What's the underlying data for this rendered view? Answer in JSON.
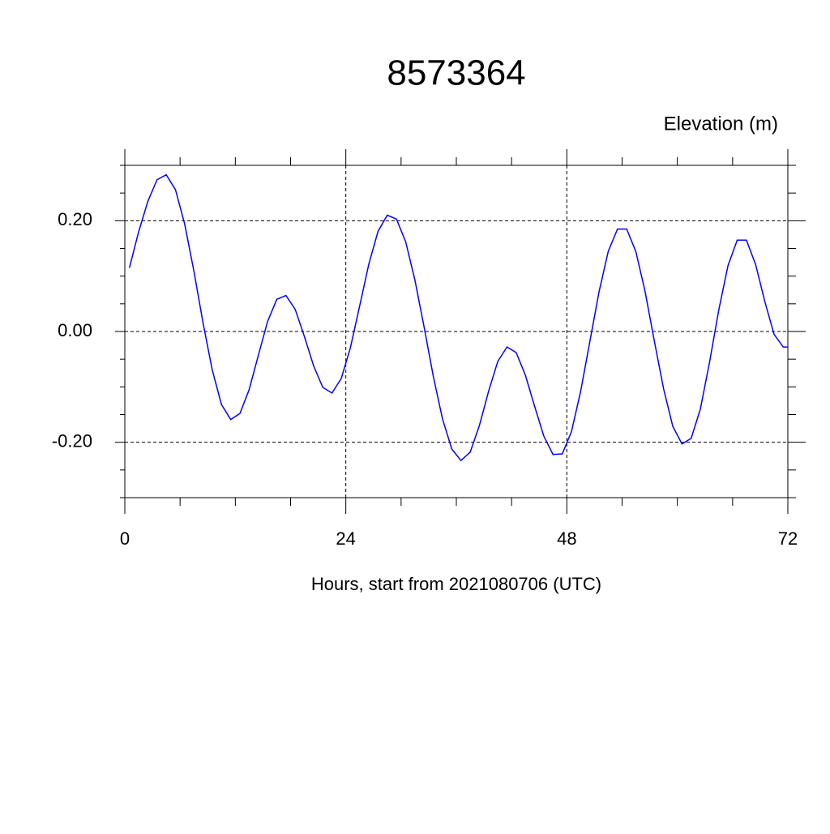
{
  "chart_data": {
    "type": "line",
    "title": "8573364",
    "y_axis_label": "Elevation (m)",
    "x_axis_label": "Hours, start from 2021080706 (UTC)",
    "x": [
      0.5,
      1.5,
      2.5,
      3.5,
      4.5,
      5.5,
      6.5,
      7.5,
      8.5,
      9.5,
      10.5,
      11.5,
      12.5,
      13.5,
      14.5,
      15.5,
      16.5,
      17.5,
      18.5,
      19.5,
      20.5,
      21.5,
      22.5,
      23.5,
      24.5,
      25.5,
      26.5,
      27.5,
      28.5,
      29.5,
      30.5,
      31.5,
      32.5,
      33.5,
      34.5,
      35.5,
      36.5,
      37.5,
      38.5,
      39.5,
      40.5,
      41.5,
      42.5,
      43.5,
      44.5,
      45.5,
      46.5,
      47.5,
      48.5,
      49.5,
      50.5,
      51.5,
      52.5,
      53.5,
      54.5,
      55.5,
      56.5,
      57.5,
      58.5,
      59.5,
      60.5,
      61.5,
      62.5,
      63.5,
      64.5,
      65.5,
      66.5,
      67.5,
      68.5,
      69.5,
      70.5,
      71.5,
      72
    ],
    "series": [
      {
        "color": "#0000ff",
        "values": [
          0.115,
          0.18,
          0.235,
          0.274,
          0.283,
          0.256,
          0.194,
          0.109,
          0.015,
          -0.07,
          -0.132,
          -0.159,
          -0.148,
          -0.105,
          -0.043,
          0.018,
          0.058,
          0.065,
          0.04,
          -0.009,
          -0.062,
          -0.101,
          -0.111,
          -0.085,
          -0.029,
          0.046,
          0.122,
          0.181,
          0.21,
          0.203,
          0.162,
          0.093,
          0.008,
          -0.081,
          -0.158,
          -0.212,
          -0.233,
          -0.218,
          -0.17,
          -0.108,
          -0.054,
          -0.028,
          -0.038,
          -0.079,
          -0.135,
          -0.189,
          -0.222,
          -0.221,
          -0.181,
          -0.108,
          -0.018,
          0.072,
          0.145,
          0.185,
          0.185,
          0.144,
          0.072,
          -0.017,
          -0.103,
          -0.171,
          -0.203,
          -0.193,
          -0.14,
          -0.055,
          0.039,
          0.119,
          0.165,
          0.165,
          0.121,
          0.054,
          -0.005,
          -0.028,
          -0.028
        ]
      }
    ],
    "xlim": [
      0,
      72
    ],
    "xticks": [
      0,
      24,
      48,
      72
    ],
    "xminorticks": [
      6,
      12,
      18,
      30,
      36,
      42,
      54,
      60,
      66
    ],
    "ylim": [
      -0.3,
      0.3
    ],
    "yticks": [
      {
        "value": -0.2,
        "label": "-0.20"
      },
      {
        "value": 0,
        "label": "0.00"
      },
      {
        "value": 0.2,
        "label": "0.20"
      }
    ],
    "yminorticks": [
      -0.3,
      -0.25,
      -0.15,
      -0.1,
      -0.05,
      0.05,
      0.1,
      0.15,
      0.25,
      0.3
    ],
    "grid": true
  }
}
